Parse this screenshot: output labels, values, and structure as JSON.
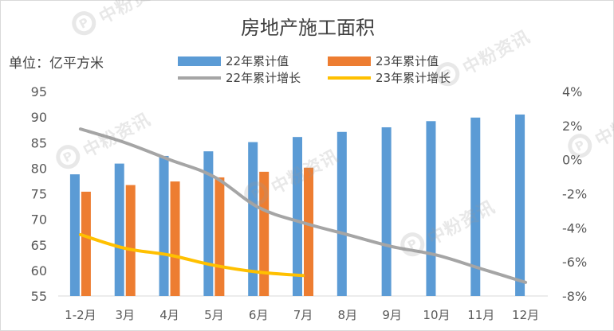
{
  "chart_data": {
    "type": "bar",
    "title": "房地产施工面积",
    "unit_label": "单位：亿平方米",
    "categories": [
      "1-2月",
      "3月",
      "4月",
      "5月",
      "6月",
      "7月",
      "8月",
      "9月",
      "10月",
      "11月",
      "12月"
    ],
    "y_left": {
      "ylim": [
        55,
        95
      ],
      "ticks": [
        "95",
        "90",
        "85",
        "80",
        "75",
        "70",
        "65",
        "60",
        "55"
      ]
    },
    "y_right": {
      "ylim": [
        -8,
        4
      ],
      "ticks": [
        "4%",
        "2%",
        "0%",
        "-2%",
        "-4%",
        "-6%",
        "-8%"
      ]
    },
    "series": [
      {
        "name": "22年累计值",
        "kind": "bar",
        "axis": "left",
        "color": "#5b9bd5",
        "values": [
          78.8,
          80.9,
          82.4,
          83.3,
          85.1,
          86.1,
          87.1,
          88.0,
          89.2,
          89.9,
          90.5
        ]
      },
      {
        "name": "23年累计值",
        "kind": "bar",
        "axis": "left",
        "color": "#ed7d31",
        "values": [
          75.4,
          76.7,
          77.4,
          78.2,
          79.3,
          80.1,
          null,
          null,
          null,
          null,
          null
        ]
      },
      {
        "name": "22年累计增长",
        "kind": "line",
        "axis": "right",
        "color": "#a5a5a5",
        "values": [
          1.8,
          1.0,
          0.0,
          -1.0,
          -2.8,
          -3.7,
          -4.4,
          -5.1,
          -5.6,
          -6.4,
          -7.2
        ]
      },
      {
        "name": "23年累计增长",
        "kind": "line",
        "axis": "right",
        "color": "#ffc000",
        "values": [
          -4.4,
          -5.2,
          -5.6,
          -6.2,
          -6.6,
          -6.8,
          null,
          null,
          null,
          null,
          null
        ]
      }
    ],
    "grid": false,
    "legend_position": "top"
  },
  "watermarks": [
    {
      "mark": "P",
      "text": "中粉资讯"
    },
    {
      "mark": "P",
      "text": "中粉资讯"
    },
    {
      "mark": "P",
      "text": "中粉资讯"
    },
    {
      "mark": "P",
      "text": "中粉资讯"
    },
    {
      "mark": "P",
      "text": "中粉资讯"
    },
    {
      "mark": "P",
      "text": "中粉资讯"
    }
  ]
}
